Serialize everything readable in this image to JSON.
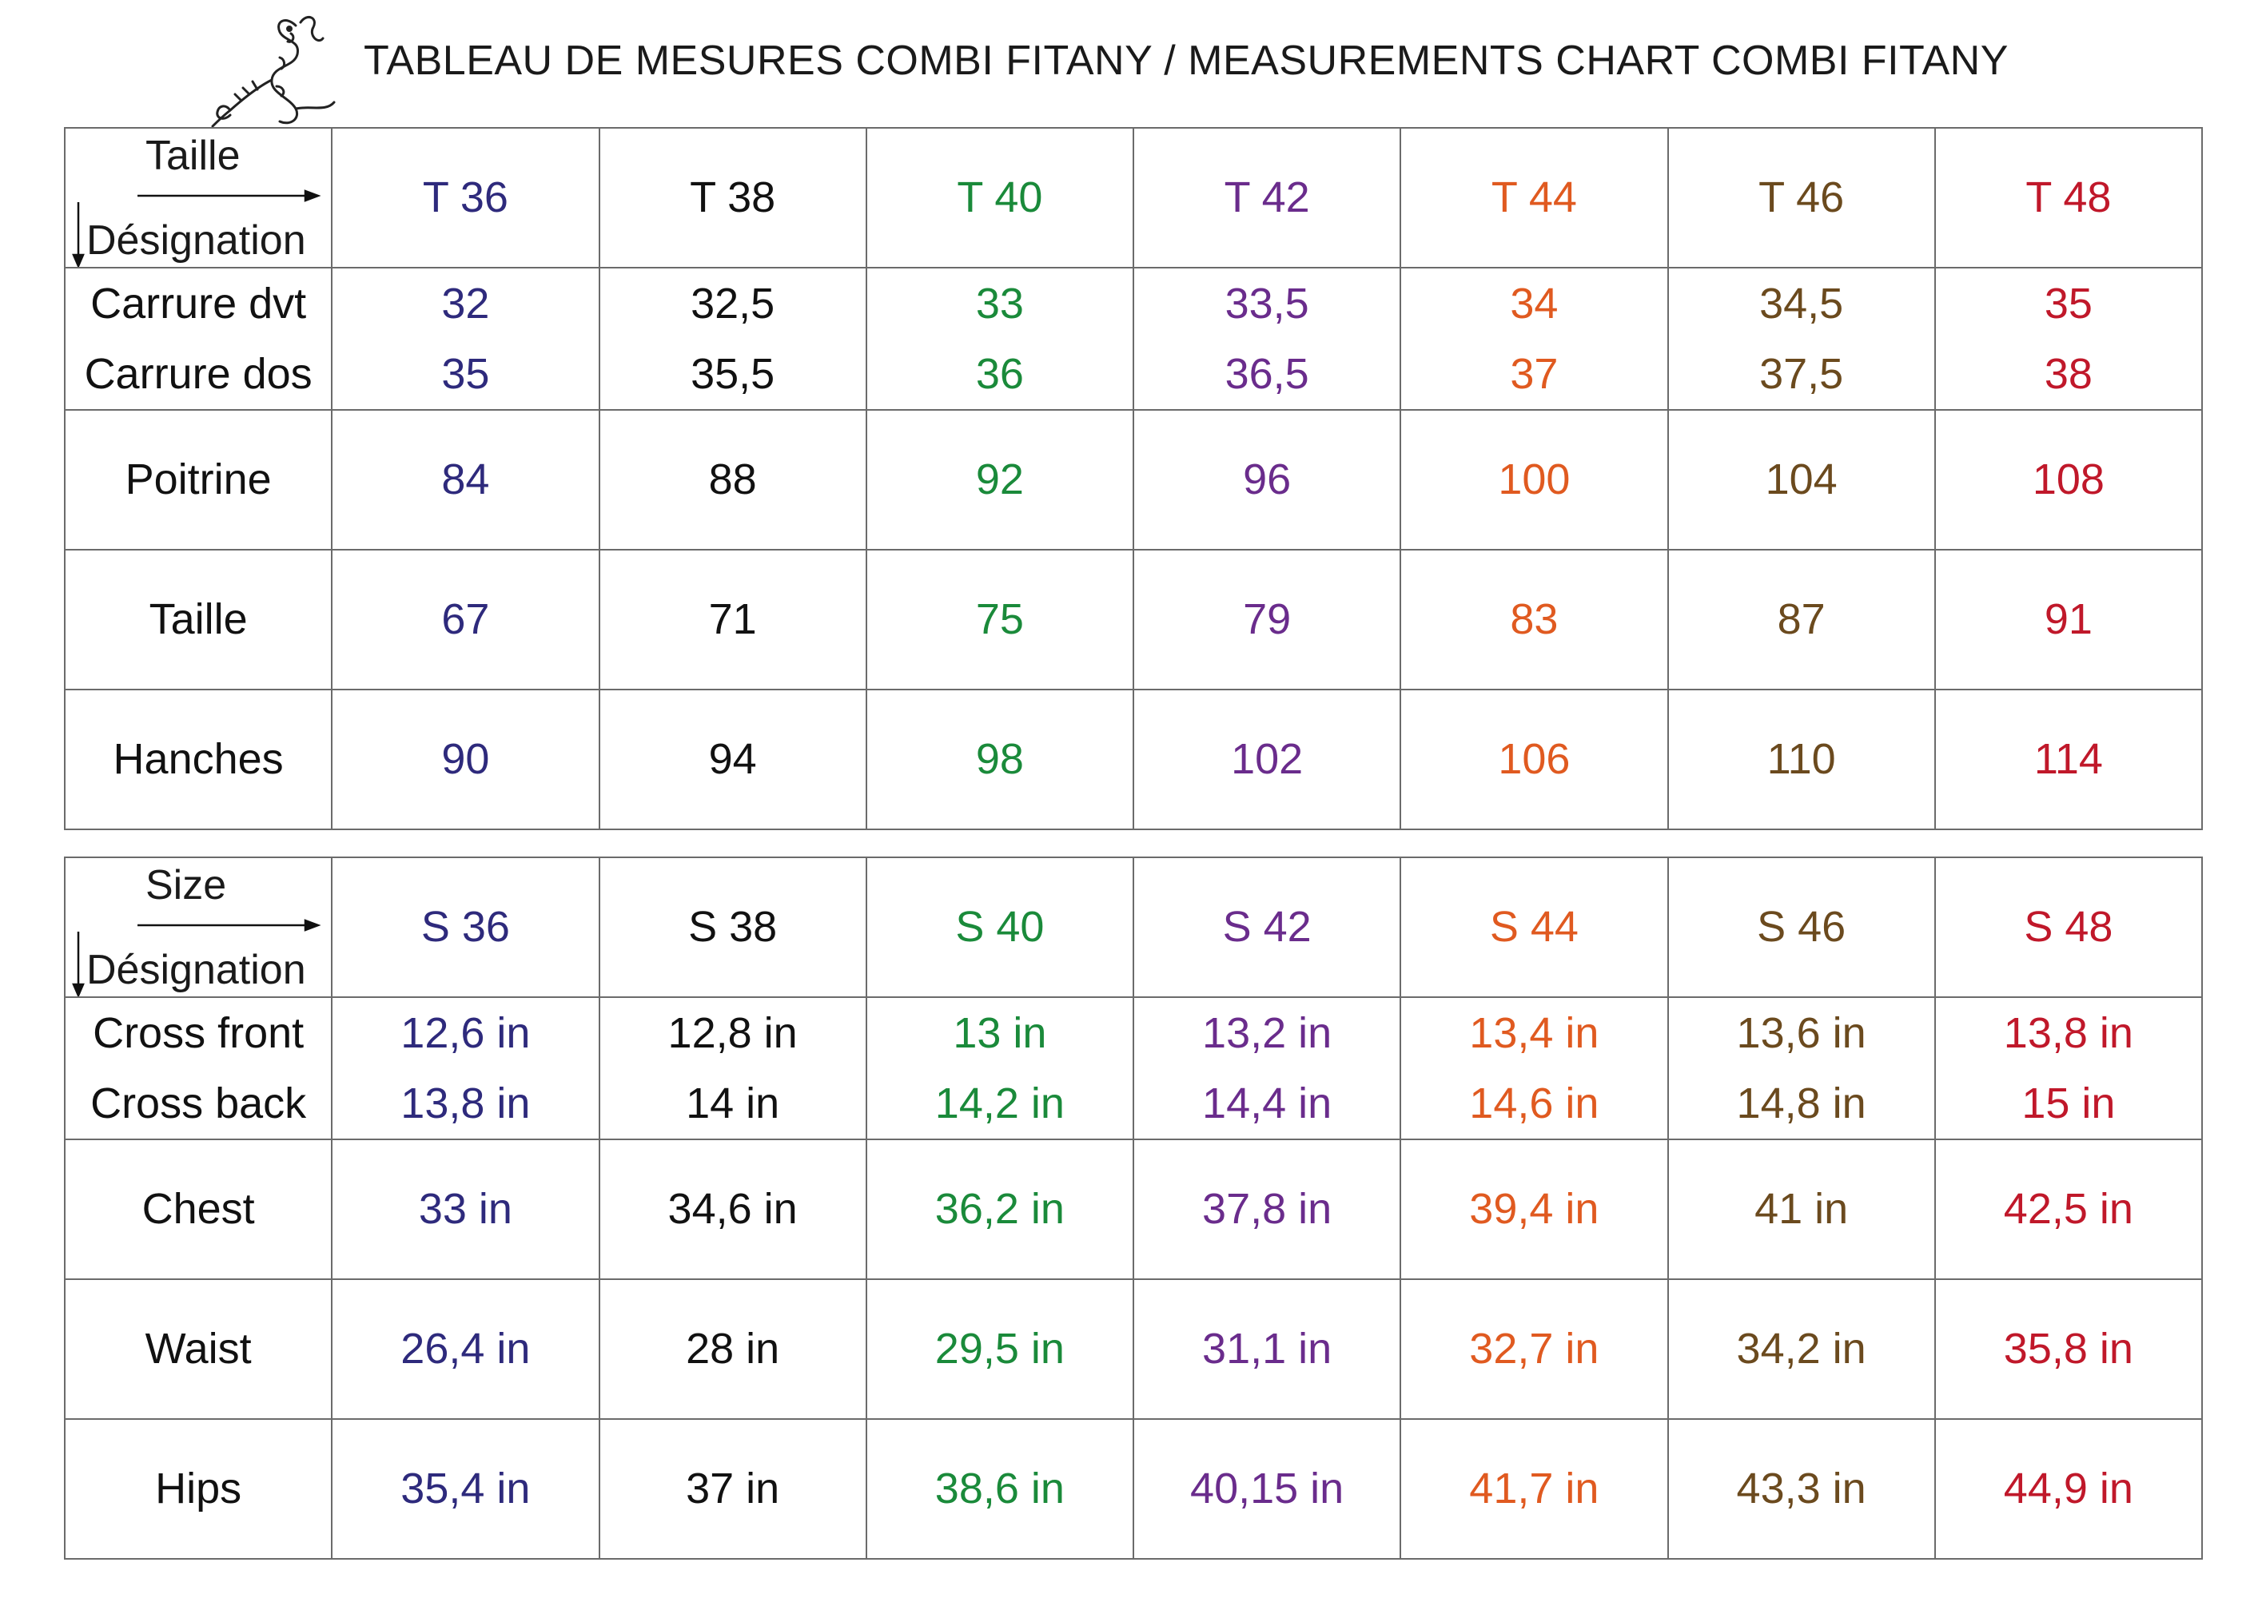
{
  "title": "TABLEAU DE MESURES COMBI FITANY / MEASUREMENTS CHART COMBI FITANY",
  "size_colors": [
    "#2e2a7c",
    "#111111",
    "#1a8a3a",
    "#6a2c8c",
    "#e05a20",
    "#6b4a1e",
    "#c0182a"
  ],
  "table_fr": {
    "corner_top": "Taille",
    "corner_bottom": "Désignation",
    "sizes": [
      "T 36",
      "T 38",
      "T 40",
      "T 42",
      "T 44",
      "T 46",
      "T 48"
    ],
    "rows": [
      {
        "labels": [
          "Carrure dvt",
          "Carrure dos"
        ],
        "values": [
          [
            "32",
            "35"
          ],
          [
            "32,5",
            "35,5"
          ],
          [
            "33",
            "36"
          ],
          [
            "33,5",
            "36,5"
          ],
          [
            "34",
            "37"
          ],
          [
            "34,5",
            "37,5"
          ],
          [
            "35",
            "38"
          ]
        ]
      },
      {
        "labels": [
          "Poitrine"
        ],
        "values": [
          [
            "84"
          ],
          [
            "88"
          ],
          [
            "92"
          ],
          [
            "96"
          ],
          [
            "100"
          ],
          [
            "104"
          ],
          [
            "108"
          ]
        ]
      },
      {
        "labels": [
          "Taille"
        ],
        "values": [
          [
            "67"
          ],
          [
            "71"
          ],
          [
            "75"
          ],
          [
            "79"
          ],
          [
            "83"
          ],
          [
            "87"
          ],
          [
            "91"
          ]
        ]
      },
      {
        "labels": [
          "Hanches"
        ],
        "values": [
          [
            "90"
          ],
          [
            "94"
          ],
          [
            "98"
          ],
          [
            "102"
          ],
          [
            "106"
          ],
          [
            "110"
          ],
          [
            "114"
          ]
        ]
      }
    ]
  },
  "table_en": {
    "corner_top": "Size",
    "corner_bottom": "Désignation",
    "sizes": [
      "S 36",
      "S 38",
      "S 40",
      "S 42",
      "S 44",
      "S 46",
      "S 48"
    ],
    "rows": [
      {
        "labels": [
          "Cross front",
          "Cross back"
        ],
        "values": [
          [
            "12,6 in",
            "13,8 in"
          ],
          [
            "12,8 in",
            "14 in"
          ],
          [
            "13 in",
            "14,2 in"
          ],
          [
            "13,2 in",
            "14,4 in"
          ],
          [
            "13,4 in",
            "14,6 in"
          ],
          [
            "13,6 in",
            "14,8 in"
          ],
          [
            "13,8 in",
            "15 in"
          ]
        ]
      },
      {
        "labels": [
          "Chest"
        ],
        "values": [
          [
            "33 in"
          ],
          [
            "34,6 in"
          ],
          [
            "36,2 in"
          ],
          [
            "37,8 in"
          ],
          [
            "39,4 in"
          ],
          [
            "41 in"
          ],
          [
            "42,5 in"
          ]
        ]
      },
      {
        "labels": [
          "Waist"
        ],
        "values": [
          [
            "26,4 in"
          ],
          [
            "28 in"
          ],
          [
            "29,5 in"
          ],
          [
            "31,1 in"
          ],
          [
            "32,7 in"
          ],
          [
            "34,2 in"
          ],
          [
            "35,8 in"
          ]
        ]
      },
      {
        "labels": [
          "Hips"
        ],
        "values": [
          [
            "35,4 in"
          ],
          [
            "37 in"
          ],
          [
            "38,6 in"
          ],
          [
            "40,15 in"
          ],
          [
            "41,7 in"
          ],
          [
            "43,3 in"
          ],
          [
            "44,9 in"
          ]
        ]
      }
    ]
  }
}
